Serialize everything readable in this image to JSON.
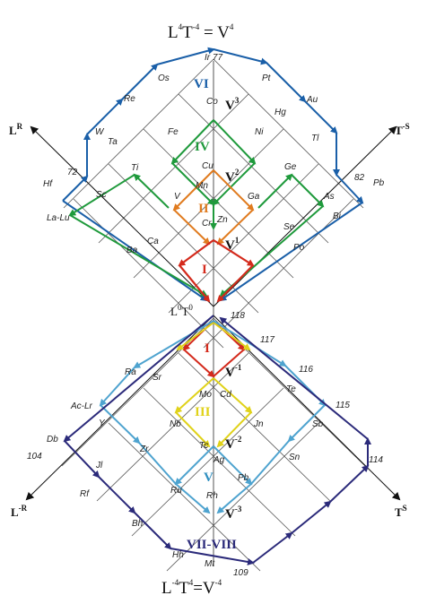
{
  "top_title": {
    "base1": "L",
    "sup1": "4",
    "base2": "T",
    "sup2": "-4",
    "rest": " = V",
    "sup3": "4"
  },
  "mid_title": {
    "base1": "L",
    "sup1": "0",
    "base2": "T",
    "sup2": "0"
  },
  "bottom_title": {
    "base1": "L",
    "sup1": "-4",
    "base2": "T",
    "sup2": "4",
    "rest": "=V",
    "sup3": "-4"
  },
  "axes": {
    "upper_left": {
      "base": "L",
      "sup": "R"
    },
    "upper_right": {
      "base": "T",
      "sup": "-S"
    },
    "lower_left": {
      "base": "L",
      "sup": "-R"
    },
    "lower_right": {
      "base": "T",
      "sup": "S"
    }
  },
  "v_labels": [
    {
      "base": "V",
      "sup": "3"
    },
    {
      "base": "V",
      "sup": "2"
    },
    {
      "base": "V",
      "sup": "1"
    },
    {
      "base": "V",
      "sup": "-1"
    },
    {
      "base": "V",
      "sup": "-2"
    },
    {
      "base": "V",
      "sup": "-3"
    }
  ],
  "roman_labels": [
    {
      "text": "VI",
      "color": "#1a5fa8"
    },
    {
      "text": "IV",
      "color": "#1f9a3c"
    },
    {
      "text": "II",
      "color": "#e07b1f"
    },
    {
      "text": "I",
      "color": "#d42a1c"
    },
    {
      "text": "I",
      "color": "#d42a1c"
    },
    {
      "text": "III",
      "color": "#e0d21a"
    },
    {
      "text": "V",
      "color": "#2f8fc0"
    },
    {
      "text": "VII-VIII",
      "color": "#2b2a7a"
    }
  ],
  "upper_elements": [
    "Ir 77",
    "Os",
    "Pt",
    "Re",
    "Au",
    "Co",
    "Hg",
    "W",
    "Ta",
    "Fe",
    "Ni",
    "Tl",
    "Hf",
    "72",
    "Ti",
    "Cu",
    "Ge",
    "82",
    "Pb",
    "Mn",
    "Sc",
    "V",
    "Ga",
    "As",
    "La-Lu",
    "Cr",
    "Zn",
    "Bi",
    "Se",
    "Ca",
    "Ba",
    "Po"
  ],
  "lower_elements": [
    "118",
    "117",
    "Ra",
    "Sr",
    "116",
    "Mo",
    "Cd",
    "Te",
    "Ac-Lr",
    "115",
    "Y",
    "Nb",
    "Jn",
    "Sb",
    "Db",
    "Zr",
    "Sn",
    "104",
    "Tc",
    "Ag",
    "114",
    "Jl",
    "Rf",
    "Ru",
    "Pb",
    "Rh",
    "Bh",
    "Hh",
    "Mt",
    "109"
  ],
  "colors": {
    "blue": "#1a5fa8",
    "green": "#1f9a3c",
    "orange": "#e07b1f",
    "red": "#d42a1c",
    "yellow": "#e0d21a",
    "lightblue": "#4ea3cf",
    "navy": "#2b2a7a",
    "grid": "#555555"
  }
}
